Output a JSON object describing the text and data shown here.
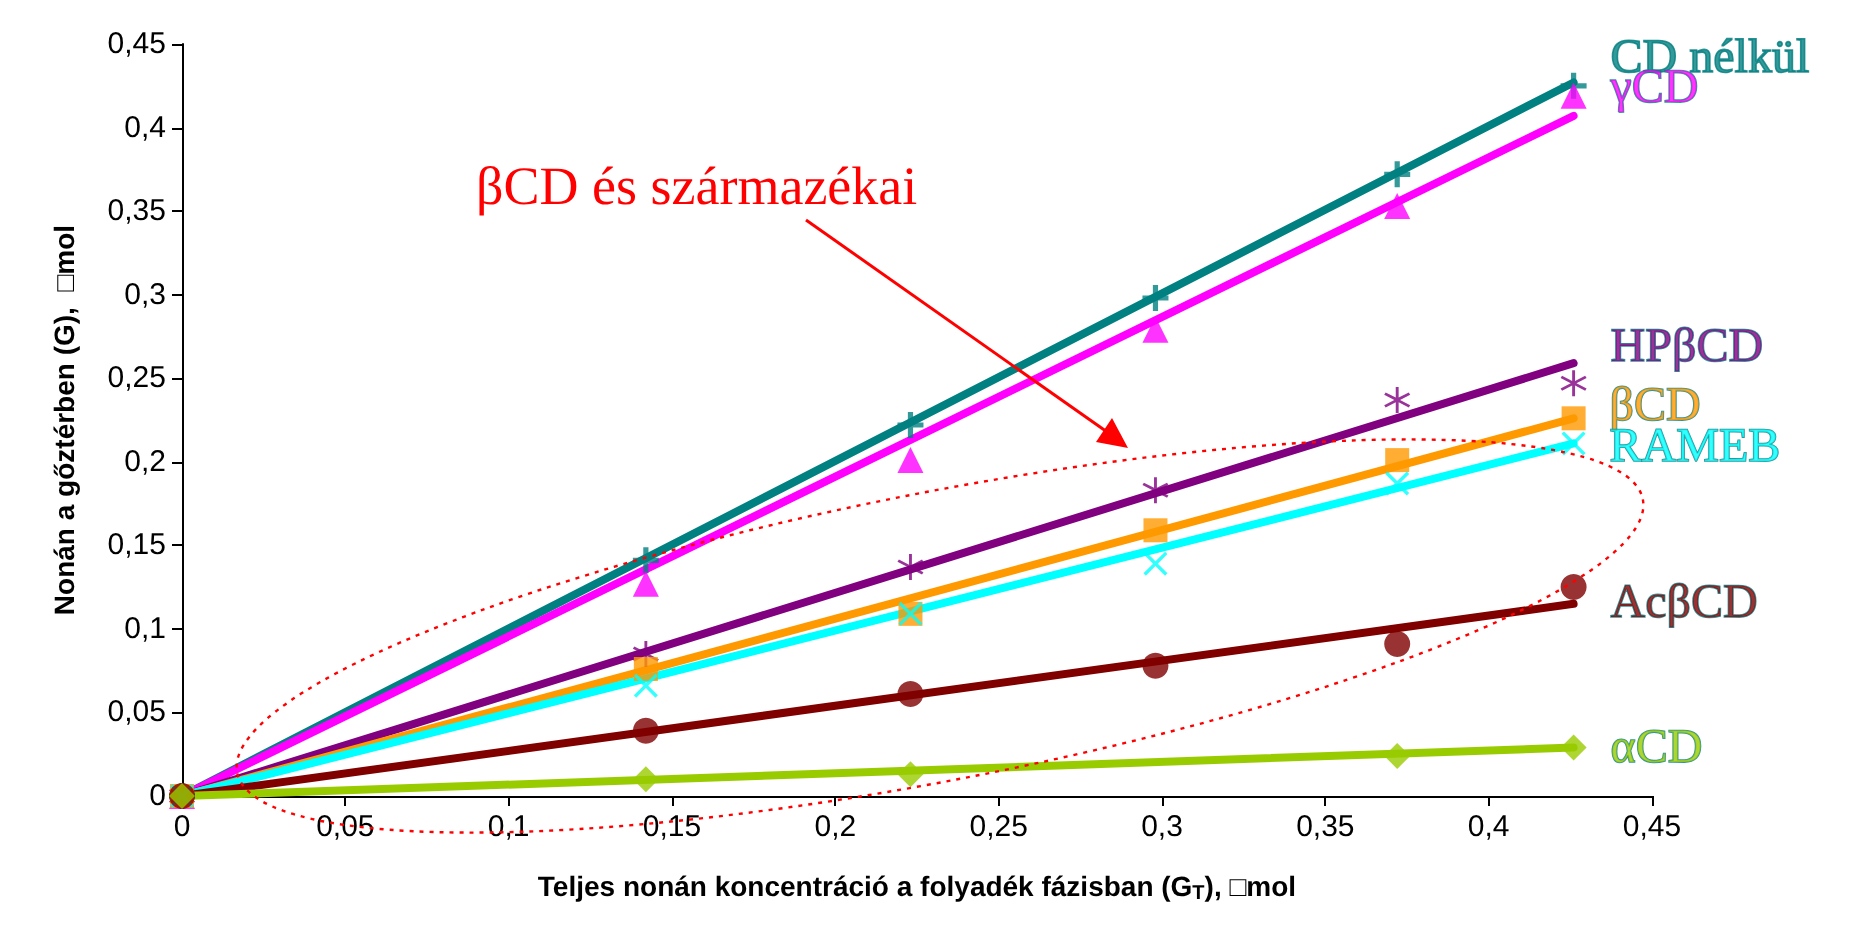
{
  "chart_data": {
    "type": "scatter",
    "xlabel": "Teljes nonán koncentráció a folyadék fázisban (G$_{T}$), □mol",
    "ylabel": "Nonán a gőztérben (G),  □mol",
    "xlim": [
      0,
      0.45
    ],
    "ylim": [
      0,
      0.45
    ],
    "xticks": [
      0,
      {
        "value": 0.05,
        "label": "0,05"
      },
      {
        "value": 0.1,
        "label": "0,1"
      },
      {
        "value": 0.15,
        "label": "0,15"
      },
      {
        "value": 0.2,
        "label": "0,2"
      },
      {
        "value": 0.25,
        "label": "0,25"
      },
      {
        "value": 0.3,
        "label": "0,3"
      },
      {
        "value": 0.35,
        "label": "0,35"
      },
      {
        "value": 0.4,
        "label": "0,4"
      },
      {
        "value": 0.45,
        "label": "0,45"
      }
    ],
    "yticks": [
      0,
      {
        "value": 0.05,
        "label": "0,05"
      },
      {
        "value": 0.1,
        "label": "0,1"
      },
      {
        "value": 0.15,
        "label": "0,15"
      },
      {
        "value": 0.2,
        "label": "0,2"
      },
      {
        "value": 0.25,
        "label": "0,25"
      },
      {
        "value": 0.3,
        "label": "0,3"
      },
      {
        "value": 0.35,
        "label": "0,35"
      },
      {
        "value": 0.4,
        "label": "0,4"
      },
      {
        "value": 0.45,
        "label": "0,45"
      }
    ],
    "grid": false,
    "legend": false,
    "annotations": [
      "βCD és származékai"
    ],
    "series": [
      {
        "name": "CD nélkül",
        "color": "#008080",
        "marker": "plus",
        "x": [
          0,
          0.142,
          0.223,
          0.298,
          0.372,
          0.426
        ],
        "values": [
          0,
          0.141,
          0.222,
          0.298,
          0.372,
          0.425
        ]
      },
      {
        "name": "γCD",
        "color": "#ff00ff",
        "marker": "triangle",
        "x": [
          0,
          0.142,
          0.223,
          0.298,
          0.372,
          0.426
        ],
        "values": [
          0,
          0.127,
          0.201,
          0.279,
          0.353,
          0.419
        ]
      },
      {
        "name": "HPβCD",
        "color": "#800080",
        "marker": "star",
        "x": [
          0,
          0.142,
          0.223,
          0.298,
          0.372,
          0.426
        ],
        "values": [
          0,
          0.085,
          0.137,
          0.183,
          0.237,
          0.247
        ]
      },
      {
        "name": "βCD",
        "color": "#ff9900",
        "marker": "square",
        "x": [
          0,
          0.142,
          0.223,
          0.298,
          0.372,
          0.426
        ],
        "values": [
          0,
          0.076,
          0.109,
          0.159,
          0.201,
          0.226
        ]
      },
      {
        "name": "RAMEB",
        "color": "#00ffff",
        "marker": "cross",
        "x": [
          0,
          0.142,
          0.223,
          0.298,
          0.372,
          0.426
        ],
        "values": [
          0,
          0.066,
          0.109,
          0.139,
          0.187,
          0.211
        ]
      },
      {
        "name": "AcβCD",
        "color": "#800000",
        "marker": "circle",
        "x": [
          0,
          0.142,
          0.223,
          0.298,
          0.372,
          0.426
        ],
        "values": [
          0,
          0.039,
          0.061,
          0.078,
          0.091,
          0.125
        ]
      },
      {
        "name": "αCD",
        "color": "#99cc00",
        "marker": "diamond",
        "x": [
          0,
          0.142,
          0.223,
          0.372,
          0.426
        ],
        "values": [
          0,
          0.01,
          0.013,
          0.024,
          0.029
        ]
      },
      {
        "type": "line",
        "color": "#008080",
        "marker": "none",
        "x": [
          0,
          0.426
        ],
        "values": [
          0,
          0.427
        ]
      },
      {
        "type": "line",
        "color": "#ff00ff",
        "marker": "none",
        "x": [
          0,
          0.426
        ],
        "values": [
          0,
          0.407
        ]
      },
      {
        "type": "line",
        "color": "#800080",
        "marker": "none",
        "x": [
          0,
          0.426
        ],
        "values": [
          0,
          0.259
        ]
      },
      {
        "type": "line",
        "color": "#ff9900",
        "marker": "none",
        "x": [
          0,
          0.426
        ],
        "values": [
          0,
          0.226
        ]
      },
      {
        "type": "line",
        "color": "#00ffff",
        "marker": "none",
        "x": [
          0,
          0.426
        ],
        "values": [
          0,
          0.211
        ]
      },
      {
        "type": "line",
        "color": "#800000",
        "marker": "none",
        "x": [
          0,
          0.426
        ],
        "values": [
          0,
          0.115
        ]
      },
      {
        "type": "line",
        "color": "#99cc00",
        "marker": "none",
        "x": [
          0,
          0.426
        ],
        "values": [
          0,
          0.029
        ]
      }
    ]
  }
}
